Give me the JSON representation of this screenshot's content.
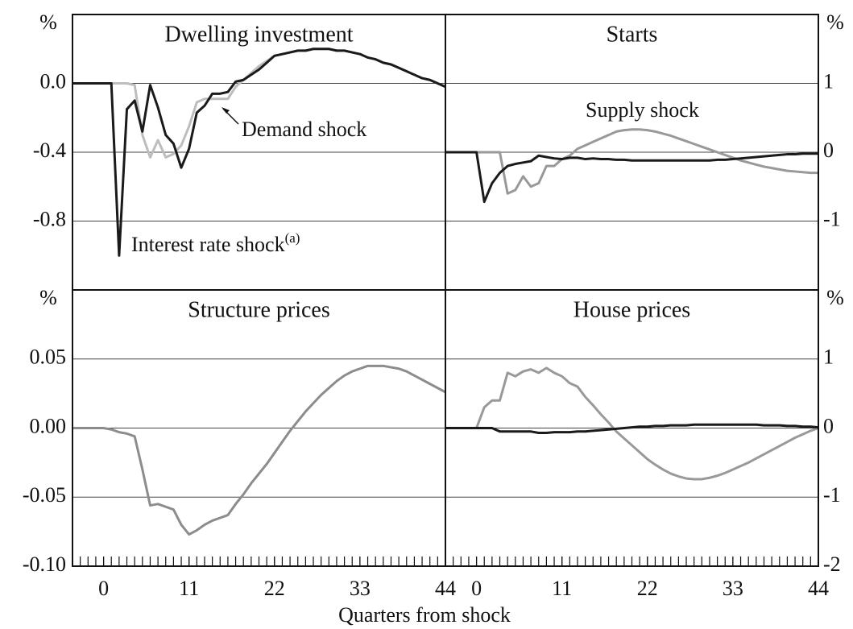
{
  "xlabel": "Quarters from shock",
  "chart_data": [
    {
      "type": "line",
      "title": "Dwelling investment",
      "ylabel": "%",
      "yaxis": "left",
      "xlim": [
        -4,
        44
      ],
      "ylim": [
        -1.2,
        0.4
      ],
      "yticks": [
        {
          "value": 0,
          "label": "0.0"
        },
        -0.4,
        -0.8
      ],
      "grid": true,
      "x": [
        -4,
        -3,
        -2,
        -1,
        0,
        1,
        2,
        3,
        4,
        5,
        6,
        7,
        8,
        9,
        10,
        11,
        12,
        13,
        14,
        15,
        16,
        17,
        18,
        19,
        20,
        21,
        22,
        23,
        24,
        25,
        26,
        27,
        28,
        29,
        30,
        31,
        32,
        33,
        34,
        35,
        36,
        37,
        38,
        39,
        40,
        41,
        42,
        43,
        44
      ],
      "series": [
        {
          "name": "Demand shock",
          "color": "#bdbdbd",
          "values": [
            0,
            0,
            0,
            0,
            0,
            0,
            0,
            0,
            -0.01,
            -0.3,
            -0.43,
            -0.33,
            -0.43,
            -0.41,
            -0.36,
            -0.25,
            -0.11,
            -0.09,
            -0.09,
            -0.09,
            -0.09,
            -0.02,
            0.02,
            0.06,
            0.1,
            0.13,
            0.16,
            0.17,
            0.18,
            0.19,
            0.19,
            0.2,
            0.2,
            0.2,
            0.19,
            0.19,
            0.18,
            0.17,
            0.15,
            0.14,
            0.12,
            0.11,
            0.09,
            0.07,
            0.05,
            0.03,
            0.02,
            0,
            -0.02
          ]
        },
        {
          "name": "Interest rate shock",
          "note_marker": "(a)",
          "color": "#1a1a1a",
          "values": [
            0,
            0,
            0,
            0,
            0,
            0,
            -1.0,
            -0.15,
            -0.1,
            -0.28,
            -0.01,
            -0.14,
            -0.3,
            -0.35,
            -0.49,
            -0.38,
            -0.17,
            -0.13,
            -0.06,
            -0.06,
            -0.05,
            0.01,
            0.02,
            0.05,
            0.08,
            0.12,
            0.16,
            0.17,
            0.18,
            0.19,
            0.19,
            0.2,
            0.2,
            0.2,
            0.19,
            0.19,
            0.18,
            0.17,
            0.15,
            0.14,
            0.12,
            0.11,
            0.09,
            0.07,
            0.05,
            0.03,
            0.02,
            0,
            -0.02
          ]
        }
      ]
    },
    {
      "type": "line",
      "title": "Starts",
      "ylabel": "%",
      "yaxis": "right",
      "xlim": [
        -4,
        44
      ],
      "ylim": [
        -2,
        2
      ],
      "yticks": [
        1,
        0,
        -1
      ],
      "grid": true,
      "x": [
        -4,
        -3,
        -2,
        -1,
        0,
        1,
        2,
        3,
        4,
        5,
        6,
        7,
        8,
        9,
        10,
        11,
        12,
        13,
        14,
        15,
        16,
        17,
        18,
        19,
        20,
        21,
        22,
        23,
        24,
        25,
        26,
        27,
        28,
        29,
        30,
        31,
        32,
        33,
        34,
        35,
        36,
        37,
        38,
        39,
        40,
        41,
        42,
        43,
        44
      ],
      "series": [
        {
          "name": "Supply shock",
          "color": "#999999",
          "values": [
            0,
            0,
            0,
            0,
            0,
            0,
            0,
            0,
            -0.6,
            -0.55,
            -0.35,
            -0.5,
            -0.45,
            -0.2,
            -0.2,
            -0.1,
            -0.05,
            0.05,
            0.1,
            0.15,
            0.2,
            0.25,
            0.3,
            0.32,
            0.33,
            0.33,
            0.32,
            0.3,
            0.27,
            0.24,
            0.2,
            0.16,
            0.12,
            0.08,
            0.04,
            0,
            -0.04,
            -0.08,
            -0.12,
            -0.15,
            -0.18,
            -0.21,
            -0.23,
            -0.25,
            -0.27,
            -0.28,
            -0.29,
            -0.3,
            -0.3
          ]
        },
        {
          "color": "#1a1a1a",
          "values": [
            0,
            0,
            0,
            0,
            0,
            -0.72,
            -0.45,
            -0.3,
            -0.2,
            -0.17,
            -0.15,
            -0.13,
            -0.05,
            -0.07,
            -0.09,
            -0.1,
            -0.08,
            -0.08,
            -0.1,
            -0.09,
            -0.1,
            -0.1,
            -0.11,
            -0.11,
            -0.12,
            -0.12,
            -0.12,
            -0.12,
            -0.12,
            -0.12,
            -0.12,
            -0.12,
            -0.12,
            -0.12,
            -0.12,
            -0.11,
            -0.11,
            -0.1,
            -0.09,
            -0.08,
            -0.07,
            -0.06,
            -0.05,
            -0.04,
            -0.03,
            -0.03,
            -0.02,
            -0.02,
            -0.02
          ]
        }
      ]
    },
    {
      "type": "line",
      "title": "Structure prices",
      "ylabel": "%",
      "yaxis": "left",
      "xlim": [
        -4,
        44
      ],
      "ylim": [
        -0.1,
        0.1
      ],
      "yticks": [
        0.05,
        {
          "value": 0,
          "label": "0.00"
        },
        -0.05,
        {
          "value": -0.1,
          "label": "-0.10"
        }
      ],
      "grid": true,
      "xticks": [
        0,
        11,
        22,
        33,
        44
      ],
      "xminorticks": true,
      "x": [
        -4,
        -3,
        -2,
        -1,
        0,
        1,
        2,
        3,
        4,
        5,
        6,
        7,
        8,
        9,
        10,
        11,
        12,
        13,
        14,
        15,
        16,
        17,
        18,
        19,
        20,
        21,
        22,
        23,
        24,
        25,
        26,
        27,
        28,
        29,
        30,
        31,
        32,
        33,
        34,
        35,
        36,
        37,
        38,
        39,
        40,
        41,
        42,
        43,
        44
      ],
      "series": [
        {
          "color": "#8c8c8c",
          "values": [
            0,
            0,
            0,
            0,
            0,
            -0.001,
            -0.003,
            -0.004,
            -0.006,
            -0.03,
            -0.056,
            -0.055,
            -0.057,
            -0.059,
            -0.07,
            -0.077,
            -0.074,
            -0.07,
            -0.067,
            -0.065,
            -0.063,
            -0.055,
            -0.048,
            -0.04,
            -0.033,
            -0.026,
            -0.018,
            -0.01,
            -0.002,
            0.005,
            0.012,
            0.018,
            0.024,
            0.029,
            0.034,
            0.038,
            0.041,
            0.043,
            0.045,
            0.045,
            0.045,
            0.044,
            0.043,
            0.041,
            0.038,
            0.035,
            0.032,
            0.029,
            0.026
          ]
        }
      ]
    },
    {
      "type": "line",
      "title": "House prices",
      "ylabel": "%",
      "yaxis": "right",
      "xlim": [
        -4,
        44
      ],
      "ylim": [
        -2,
        2
      ],
      "yticks": [
        1,
        0,
        -1,
        -2
      ],
      "grid": true,
      "xticks": [
        0,
        11,
        22,
        33,
        44
      ],
      "xminorticks": true,
      "x": [
        -4,
        -3,
        -2,
        -1,
        0,
        1,
        2,
        3,
        4,
        5,
        6,
        7,
        8,
        9,
        10,
        11,
        12,
        13,
        14,
        15,
        16,
        17,
        18,
        19,
        20,
        21,
        22,
        23,
        24,
        25,
        26,
        27,
        28,
        29,
        30,
        31,
        32,
        33,
        34,
        35,
        36,
        37,
        38,
        39,
        40,
        41,
        42,
        43,
        44
      ],
      "series": [
        {
          "color": "#999999",
          "values": [
            0,
            0,
            0,
            0,
            0,
            0.3,
            0.4,
            0.4,
            0.8,
            0.75,
            0.82,
            0.85,
            0.8,
            0.87,
            0.8,
            0.75,
            0.65,
            0.6,
            0.45,
            0.33,
            0.2,
            0.08,
            -0.05,
            -0.15,
            -0.25,
            -0.35,
            -0.45,
            -0.53,
            -0.6,
            -0.66,
            -0.7,
            -0.73,
            -0.74,
            -0.74,
            -0.72,
            -0.69,
            -0.65,
            -0.6,
            -0.55,
            -0.5,
            -0.44,
            -0.38,
            -0.32,
            -0.26,
            -0.2,
            -0.14,
            -0.09,
            -0.04,
            0
          ]
        },
        {
          "color": "#1a1a1a",
          "values": [
            0,
            0,
            0,
            0,
            0,
            0,
            0,
            -0.05,
            -0.05,
            -0.05,
            -0.05,
            -0.05,
            -0.07,
            -0.07,
            -0.06,
            -0.06,
            -0.06,
            -0.05,
            -0.05,
            -0.04,
            -0.03,
            -0.02,
            -0.01,
            0,
            0.01,
            0.02,
            0.02,
            0.03,
            0.03,
            0.04,
            0.04,
            0.04,
            0.05,
            0.05,
            0.05,
            0.05,
            0.05,
            0.05,
            0.05,
            0.05,
            0.05,
            0.04,
            0.04,
            0.04,
            0.03,
            0.03,
            0.02,
            0.02,
            0.01
          ]
        }
      ]
    }
  ]
}
